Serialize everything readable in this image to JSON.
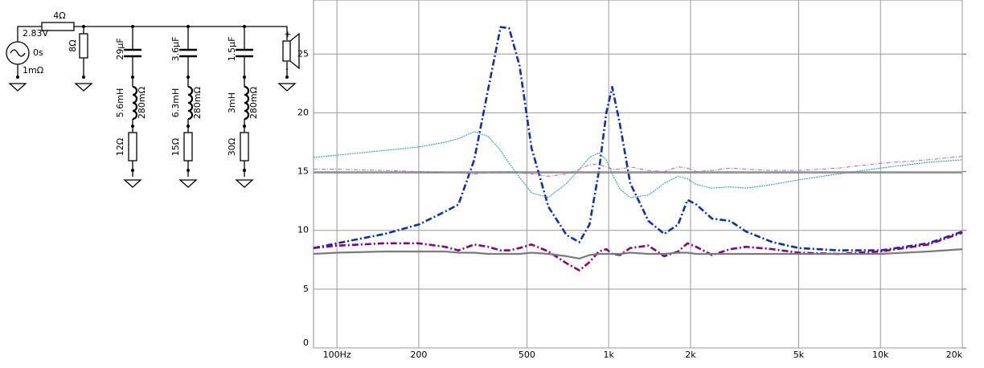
{
  "circuit": {
    "source": {
      "voltage": "2.83V",
      "delay": "0s",
      "resistance": "1mΩ"
    },
    "series_resistor": "4Ω",
    "shunt_resistor": "8Ω",
    "branches": [
      {
        "capacitor": "29µF",
        "inductor": "5.6mH",
        "inductor_resistance": "280mΩ",
        "resistor": "12Ω"
      },
      {
        "capacitor": "3.6µF",
        "inductor": "6.3mH",
        "inductor_resistance": "280mΩ",
        "resistor": "15Ω"
      },
      {
        "capacitor": "1.5µF",
        "inductor": "3mH",
        "inductor_resistance": "280mΩ",
        "resistor": "30Ω"
      }
    ],
    "speaker_plus": "+",
    "speaker_minus": "-"
  },
  "chart_data": {
    "type": "line",
    "log_x": true,
    "grid": true,
    "xlim": [
      82,
      20000
    ],
    "ylim": [
      0,
      29.6
    ],
    "xticks": [
      {
        "value": 100,
        "label": "100Hz"
      },
      200,
      500,
      {
        "value": 1000,
        "label": "1k"
      },
      {
        "value": 2000,
        "label": "2k"
      },
      {
        "value": 5000,
        "label": "5k"
      },
      {
        "value": 10000,
        "label": "10k"
      },
      {
        "value": 20000,
        "label": "20k"
      }
    ],
    "yticks": [
      0,
      5,
      10,
      15,
      20,
      25
    ],
    "x": [
      82,
      100,
      150,
      200,
      250,
      280,
      320,
      360,
      400,
      430,
      470,
      520,
      600,
      700,
      780,
      850,
      920,
      980,
      1030,
      1100,
      1200,
      1400,
      1600,
      1800,
      1950,
      2100,
      2400,
      2800,
      3200,
      4000,
      5000,
      7000,
      10000,
      15000,
      20000
    ],
    "series": [
      {
        "color": "#0a2ec0",
        "line_style": "dash-dot-bold",
        "values": [
          8.5,
          8.9,
          9.7,
          10.5,
          11.6,
          12.2,
          16,
          22,
          27.3,
          27.2,
          24,
          17,
          12,
          9.6,
          9.0,
          10.5,
          15,
          20,
          22.2,
          19,
          14,
          10.8,
          9.7,
          10.5,
          12.6,
          12.2,
          11.0,
          10.8,
          9.9,
          9.0,
          8.5,
          8.3,
          8.3,
          8.9,
          9.9
        ]
      },
      {
        "color": "#2a9fb8",
        "line_style": "dotted",
        "values": [
          16.2,
          16.4,
          16.8,
          17.1,
          17.5,
          17.8,
          18.4,
          18.0,
          16.8,
          15.7,
          14.5,
          13.2,
          12.8,
          14.0,
          15.2,
          16.2,
          16.6,
          16.0,
          14.8,
          13.5,
          12.8,
          13.0,
          14.0,
          14.6,
          14.4,
          13.9,
          13.6,
          13.7,
          13.6,
          13.9,
          14.3,
          14.8,
          15.3,
          15.8,
          16.0
        ]
      },
      {
        "color": "#b060e0",
        "line_style": "dash-dot",
        "values": [
          15.2,
          15.2,
          15.1,
          15.0,
          14.9,
          14.9,
          14.8,
          14.9,
          15.0,
          15.0,
          14.9,
          14.8,
          14.6,
          14.8,
          15.2,
          15.6,
          15.6,
          15.4,
          15.2,
          15.2,
          15.4,
          15.1,
          15.0,
          15.4,
          15.3,
          15.0,
          15.1,
          15.3,
          15.2,
          15.1,
          15.1,
          15.3,
          15.7,
          16.0,
          16.3
        ]
      },
      {
        "color": "#7a7a7a",
        "line_style": "solid",
        "values": [
          14.9,
          14.9,
          14.9,
          14.9,
          14.9,
          14.9,
          14.9,
          14.9,
          14.9,
          14.9,
          14.9,
          14.9,
          14.9,
          14.9,
          14.9,
          14.9,
          14.9,
          14.9,
          14.9,
          14.9,
          14.9,
          14.9,
          14.9,
          14.9,
          14.9,
          14.9,
          14.9,
          14.9,
          14.9,
          14.9,
          14.9,
          14.9,
          14.9,
          14.9,
          14.9
        ]
      },
      {
        "color": "#880088",
        "line_style": "dash-dot-bold",
        "values": [
          8.5,
          8.7,
          8.9,
          8.9,
          8.6,
          8.3,
          8.8,
          8.6,
          8.3,
          8.3,
          8.5,
          8.8,
          8.2,
          7.2,
          6.6,
          7.3,
          8.2,
          8.4,
          8.0,
          7.9,
          8.5,
          8.7,
          7.8,
          8.2,
          8.9,
          8.6,
          7.9,
          8.4,
          8.6,
          8.4,
          8.1,
          8.0,
          8.2,
          8.8,
          9.8
        ]
      },
      {
        "color": "#7a7a7a",
        "line_style": "solid-bold",
        "values": [
          8.0,
          8.1,
          8.2,
          8.2,
          8.2,
          8.1,
          8.1,
          8.0,
          8.0,
          8.0,
          8.0,
          8.1,
          8.0,
          7.8,
          7.6,
          7.9,
          8.0,
          8.0,
          8.0,
          8.0,
          8.1,
          8.0,
          8.0,
          8.1,
          8.1,
          8.0,
          8.0,
          8.0,
          8.0,
          8.0,
          8.0,
          8.0,
          8.0,
          8.2,
          8.4
        ]
      }
    ]
  }
}
